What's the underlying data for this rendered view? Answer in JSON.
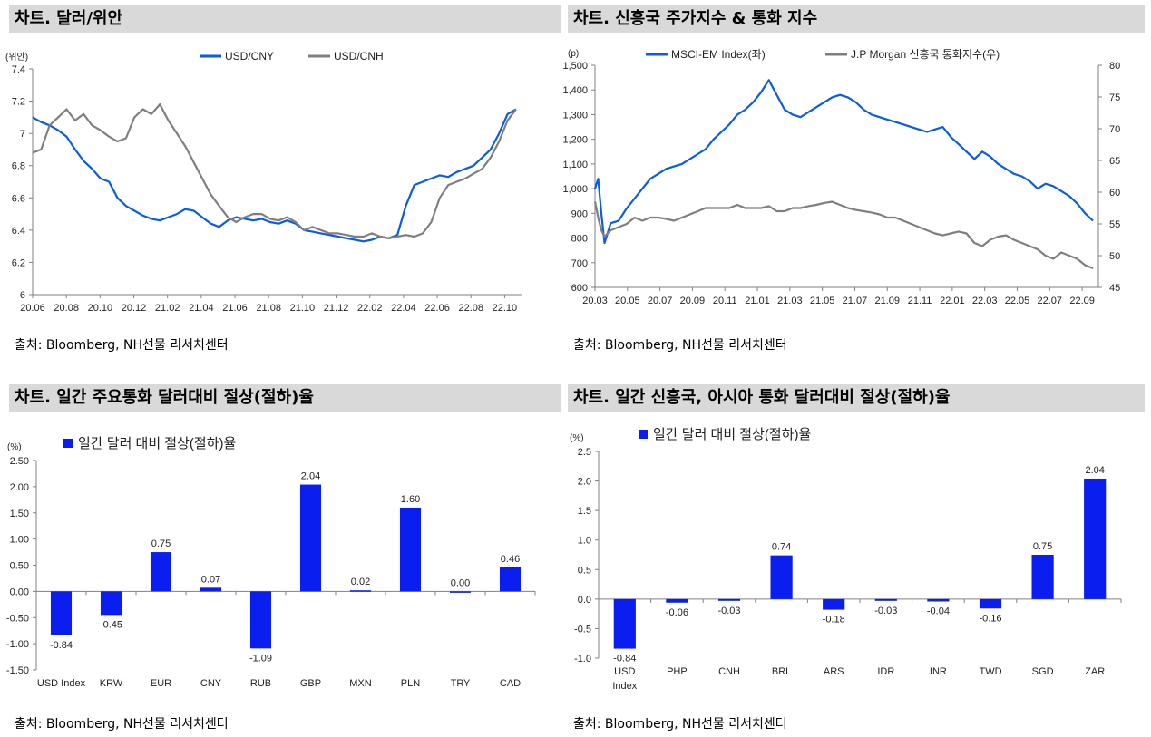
{
  "panels": {
    "p1": {
      "title": "차트. 달러/위안",
      "source": "출처: Bloomberg, NH선물 리서치센터"
    },
    "p2": {
      "title": "차트. 신흥국 주가지수 & 통화 지수",
      "source": "출처: Bloomberg, NH선물 리서치센터"
    },
    "p3": {
      "title": "차트. 일간 주요통화 달러대비 절상(절하)율",
      "source": "출처: Bloomberg, NH선물 리서치센터"
    },
    "p4": {
      "title": "차트. 일간 신흥국, 아시아 통화 달러대비 절상(절하)율",
      "source": "출처: Bloomberg, NH선물 리서치센터"
    }
  },
  "colors": {
    "blue": "#0a5ce8",
    "gray": "#7f7f7f",
    "bar": "#0a1ef0"
  },
  "chart_data": [
    {
      "type": "line",
      "unit_label": "(위안)",
      "x_ticks": [
        "20.06",
        "20.08",
        "20.10",
        "20.12",
        "21.02",
        "21.04",
        "21.06",
        "21.08",
        "21.10",
        "21.12",
        "22.02",
        "22.04",
        "22.06",
        "22.08",
        "22.10"
      ],
      "ylim": [
        6,
        7.4
      ],
      "y_ticks": [
        "6",
        "6.2",
        "6.4",
        "6.6",
        "6.8",
        "7",
        "7.2",
        "7.4"
      ],
      "legend": "top-right",
      "series": [
        {
          "name": "USD/CNY",
          "color": "#0a5ce8",
          "x": [
            0,
            0.5,
            1,
            1.5,
            2,
            2.5,
            3,
            3.5,
            4,
            4.5,
            5,
            5.5,
            6,
            6.5,
            7,
            7.5,
            8,
            8.5,
            9,
            9.5,
            10,
            10.5,
            11,
            11.5,
            12,
            12.5,
            13,
            13.5,
            14,
            14.5,
            15,
            15.5,
            16,
            16.5,
            17,
            17.5,
            18,
            18.5,
            19,
            19.5,
            20,
            20.5,
            21,
            21.5,
            22,
            22.5,
            23,
            23.5,
            24,
            24.5,
            25,
            25.5,
            26,
            26.5,
            27,
            27.5,
            28,
            28.5
          ],
          "values": [
            7.1,
            7.07,
            7.05,
            7.02,
            6.98,
            6.9,
            6.83,
            6.78,
            6.72,
            6.7,
            6.6,
            6.55,
            6.52,
            6.49,
            6.47,
            6.46,
            6.48,
            6.5,
            6.53,
            6.52,
            6.48,
            6.44,
            6.42,
            6.46,
            6.48,
            6.47,
            6.46,
            6.47,
            6.45,
            6.44,
            6.46,
            6.44,
            6.4,
            6.39,
            6.38,
            6.37,
            6.36,
            6.35,
            6.34,
            6.33,
            6.34,
            6.36,
            6.35,
            6.37,
            6.55,
            6.68,
            6.7,
            6.72,
            6.74,
            6.73,
            6.76,
            6.78,
            6.8,
            6.85,
            6.9,
            7.0,
            7.12,
            7.15
          ]
        },
        {
          "name": "USD/CNH",
          "color": "#7f7f7f",
          "x": [
            0,
            0.5,
            1,
            1.5,
            2,
            2.5,
            3,
            3.5,
            4,
            4.5,
            5,
            5.5,
            6,
            6.5,
            7,
            7.5,
            8,
            8.5,
            9,
            9.5,
            10,
            10.5,
            11,
            11.5,
            12,
            12.5,
            13,
            13.5,
            14,
            14.5,
            15,
            15.5,
            16,
            16.5,
            17,
            17.5,
            18,
            18.5,
            19,
            19.5,
            20,
            20.5,
            21,
            21.5,
            22,
            22.5,
            23,
            23.5,
            24,
            24.5,
            25,
            25.5,
            26,
            26.5,
            27,
            27.5,
            28,
            28.5
          ],
          "values": [
            6.88,
            6.9,
            7.05,
            7.1,
            7.15,
            7.08,
            7.12,
            7.05,
            7.02,
            6.98,
            6.95,
            6.97,
            7.1,
            7.15,
            7.12,
            7.18,
            7.08,
            7.0,
            6.92,
            6.82,
            6.72,
            6.62,
            6.55,
            6.48,
            6.45,
            6.48,
            6.5,
            6.5,
            6.47,
            6.46,
            6.48,
            6.45,
            6.4,
            6.42,
            6.4,
            6.38,
            6.38,
            6.37,
            6.36,
            6.36,
            6.38,
            6.36,
            6.35,
            6.36,
            6.37,
            6.36,
            6.38,
            6.45,
            6.6,
            6.68,
            6.7,
            6.72,
            6.75,
            6.78,
            6.85,
            6.95,
            7.08,
            7.15
          ]
        }
      ]
    },
    {
      "type": "line",
      "unit_label": "(p)",
      "x_ticks": [
        "20.03",
        "20.05",
        "20.07",
        "20.09",
        "20.11",
        "21.01",
        "21.03",
        "21.05",
        "21.07",
        "21.09",
        "21.11",
        "22.01",
        "22.03",
        "22.05",
        "22.07",
        "22.09"
      ],
      "ylim": [
        600,
        1500
      ],
      "y_ticks": [
        "600",
        "700",
        "800",
        "900",
        "1,000",
        "1,100",
        "1,200",
        "1,300",
        "1,400",
        "1,500"
      ],
      "y2lim": [
        45,
        80
      ],
      "y2_ticks": [
        "45",
        "50",
        "55",
        "60",
        "65",
        "70",
        "75",
        "80"
      ],
      "legend": "top-center",
      "series": [
        {
          "name": "MSCI-EM Index(좌)",
          "axis": "left",
          "color": "#0a5ce8",
          "x": [
            0,
            0.2,
            0.4,
            0.6,
            1,
            1.5,
            2,
            2.5,
            3,
            3.5,
            4,
            4.5,
            5,
            5.5,
            6,
            6.5,
            7,
            7.5,
            8,
            8.5,
            9,
            9.5,
            10,
            10.5,
            11,
            11.5,
            12,
            12.5,
            13,
            13.5,
            14,
            14.5,
            15,
            15.5,
            16,
            16.5,
            17,
            17.5,
            18,
            18.5,
            19,
            19.5,
            20,
            20.5,
            21,
            21.5,
            22,
            22.5,
            23,
            23.5,
            24,
            24.5,
            25,
            25.5,
            26,
            26.5,
            27,
            27.5,
            28,
            28.5,
            29,
            29.5,
            30,
            30.5,
            31,
            31.5
          ],
          "values": [
            1000,
            1040,
            900,
            780,
            860,
            870,
            920,
            960,
            1000,
            1040,
            1060,
            1080,
            1090,
            1100,
            1120,
            1140,
            1160,
            1200,
            1230,
            1260,
            1300,
            1320,
            1350,
            1390,
            1440,
            1380,
            1320,
            1300,
            1290,
            1310,
            1330,
            1350,
            1370,
            1380,
            1370,
            1350,
            1320,
            1300,
            1290,
            1280,
            1270,
            1260,
            1250,
            1240,
            1230,
            1240,
            1250,
            1210,
            1180,
            1150,
            1120,
            1150,
            1130,
            1100,
            1080,
            1060,
            1050,
            1030,
            1000,
            1020,
            1010,
            990,
            970,
            940,
            900,
            870
          ]
        },
        {
          "name": "J.P Morgan 신흥국 통화지수(우)",
          "axis": "right",
          "color": "#7f7f7f",
          "x": [
            0,
            0.2,
            0.4,
            0.6,
            1,
            1.5,
            2,
            2.5,
            3,
            3.5,
            4,
            4.5,
            5,
            5.5,
            6,
            6.5,
            7,
            7.5,
            8,
            8.5,
            9,
            9.5,
            10,
            10.5,
            11,
            11.5,
            12,
            12.5,
            13,
            13.5,
            14,
            14.5,
            15,
            15.5,
            16,
            16.5,
            17,
            17.5,
            18,
            18.5,
            19,
            19.5,
            20,
            20.5,
            21,
            21.5,
            22,
            22.5,
            23,
            23.5,
            24,
            24.5,
            25,
            25.5,
            26,
            26.5,
            27,
            27.5,
            28,
            28.5,
            29,
            29.5,
            30,
            30.5,
            31,
            31.5
          ],
          "values": [
            58.5,
            56,
            54,
            53,
            54,
            54.5,
            55,
            56,
            55.5,
            56,
            56,
            55.8,
            55.5,
            56,
            56.5,
            57,
            57.5,
            57.5,
            57.5,
            57.5,
            58,
            57.5,
            57.5,
            57.5,
            57.8,
            57,
            57,
            57.5,
            57.5,
            57.8,
            58,
            58.3,
            58.5,
            58,
            57.5,
            57.2,
            57,
            56.8,
            56.5,
            56,
            56,
            55.5,
            55,
            54.5,
            54,
            53.5,
            53.2,
            53.5,
            53.8,
            53.5,
            52,
            51.5,
            52.5,
            53,
            53.2,
            52.5,
            52,
            51.5,
            51,
            50,
            49.5,
            50.5,
            50,
            49.5,
            48.5,
            48
          ]
        }
      ]
    },
    {
      "type": "bar",
      "unit_label": "(%)",
      "legend": "일간 달러 대비 절상(절하)율",
      "categories": [
        "USD Index",
        "KRW",
        "EUR",
        "CNY",
        "RUB",
        "GBP",
        "MXN",
        "PLN",
        "TRY",
        "CAD"
      ],
      "values": [
        -0.84,
        -0.45,
        0.75,
        0.07,
        -1.09,
        2.04,
        0.02,
        1.6,
        0.0,
        0.46
      ],
      "labels": [
        "-0.84",
        "-0.45",
        "0.75",
        "0.07",
        "-1.09",
        "2.04",
        "0.02",
        "1.60",
        "0.00",
        "0.46"
      ],
      "ylim": [
        -1.5,
        2.5
      ],
      "y_ticks": [
        "-1.50",
        "-1.00",
        "-0.50",
        "0.00",
        "0.50",
        "1.00",
        "1.50",
        "2.00",
        "2.50"
      ]
    },
    {
      "type": "bar",
      "unit_label": "(%)",
      "legend": "일간 달러 대비 절상(절하)율",
      "categories": [
        "USD\nIndex",
        "PHP",
        "CNH",
        "BRL",
        "ARS",
        "IDR",
        "INR",
        "TWD",
        "SGD",
        "ZAR"
      ],
      "values": [
        -0.84,
        -0.06,
        -0.03,
        0.74,
        -0.18,
        -0.03,
        -0.04,
        -0.16,
        0.75,
        2.04
      ],
      "labels": [
        "-0.84",
        "-0.06",
        "-0.03",
        "0.74",
        "-0.18",
        "-0.03",
        "-0.04",
        "-0.16",
        "0.75",
        "2.04"
      ],
      "ylim": [
        -1.0,
        2.5
      ],
      "y_ticks": [
        "-1.0",
        "-0.5",
        "0.0",
        "0.5",
        "1.0",
        "1.5",
        "2.0",
        "2.5"
      ]
    }
  ]
}
